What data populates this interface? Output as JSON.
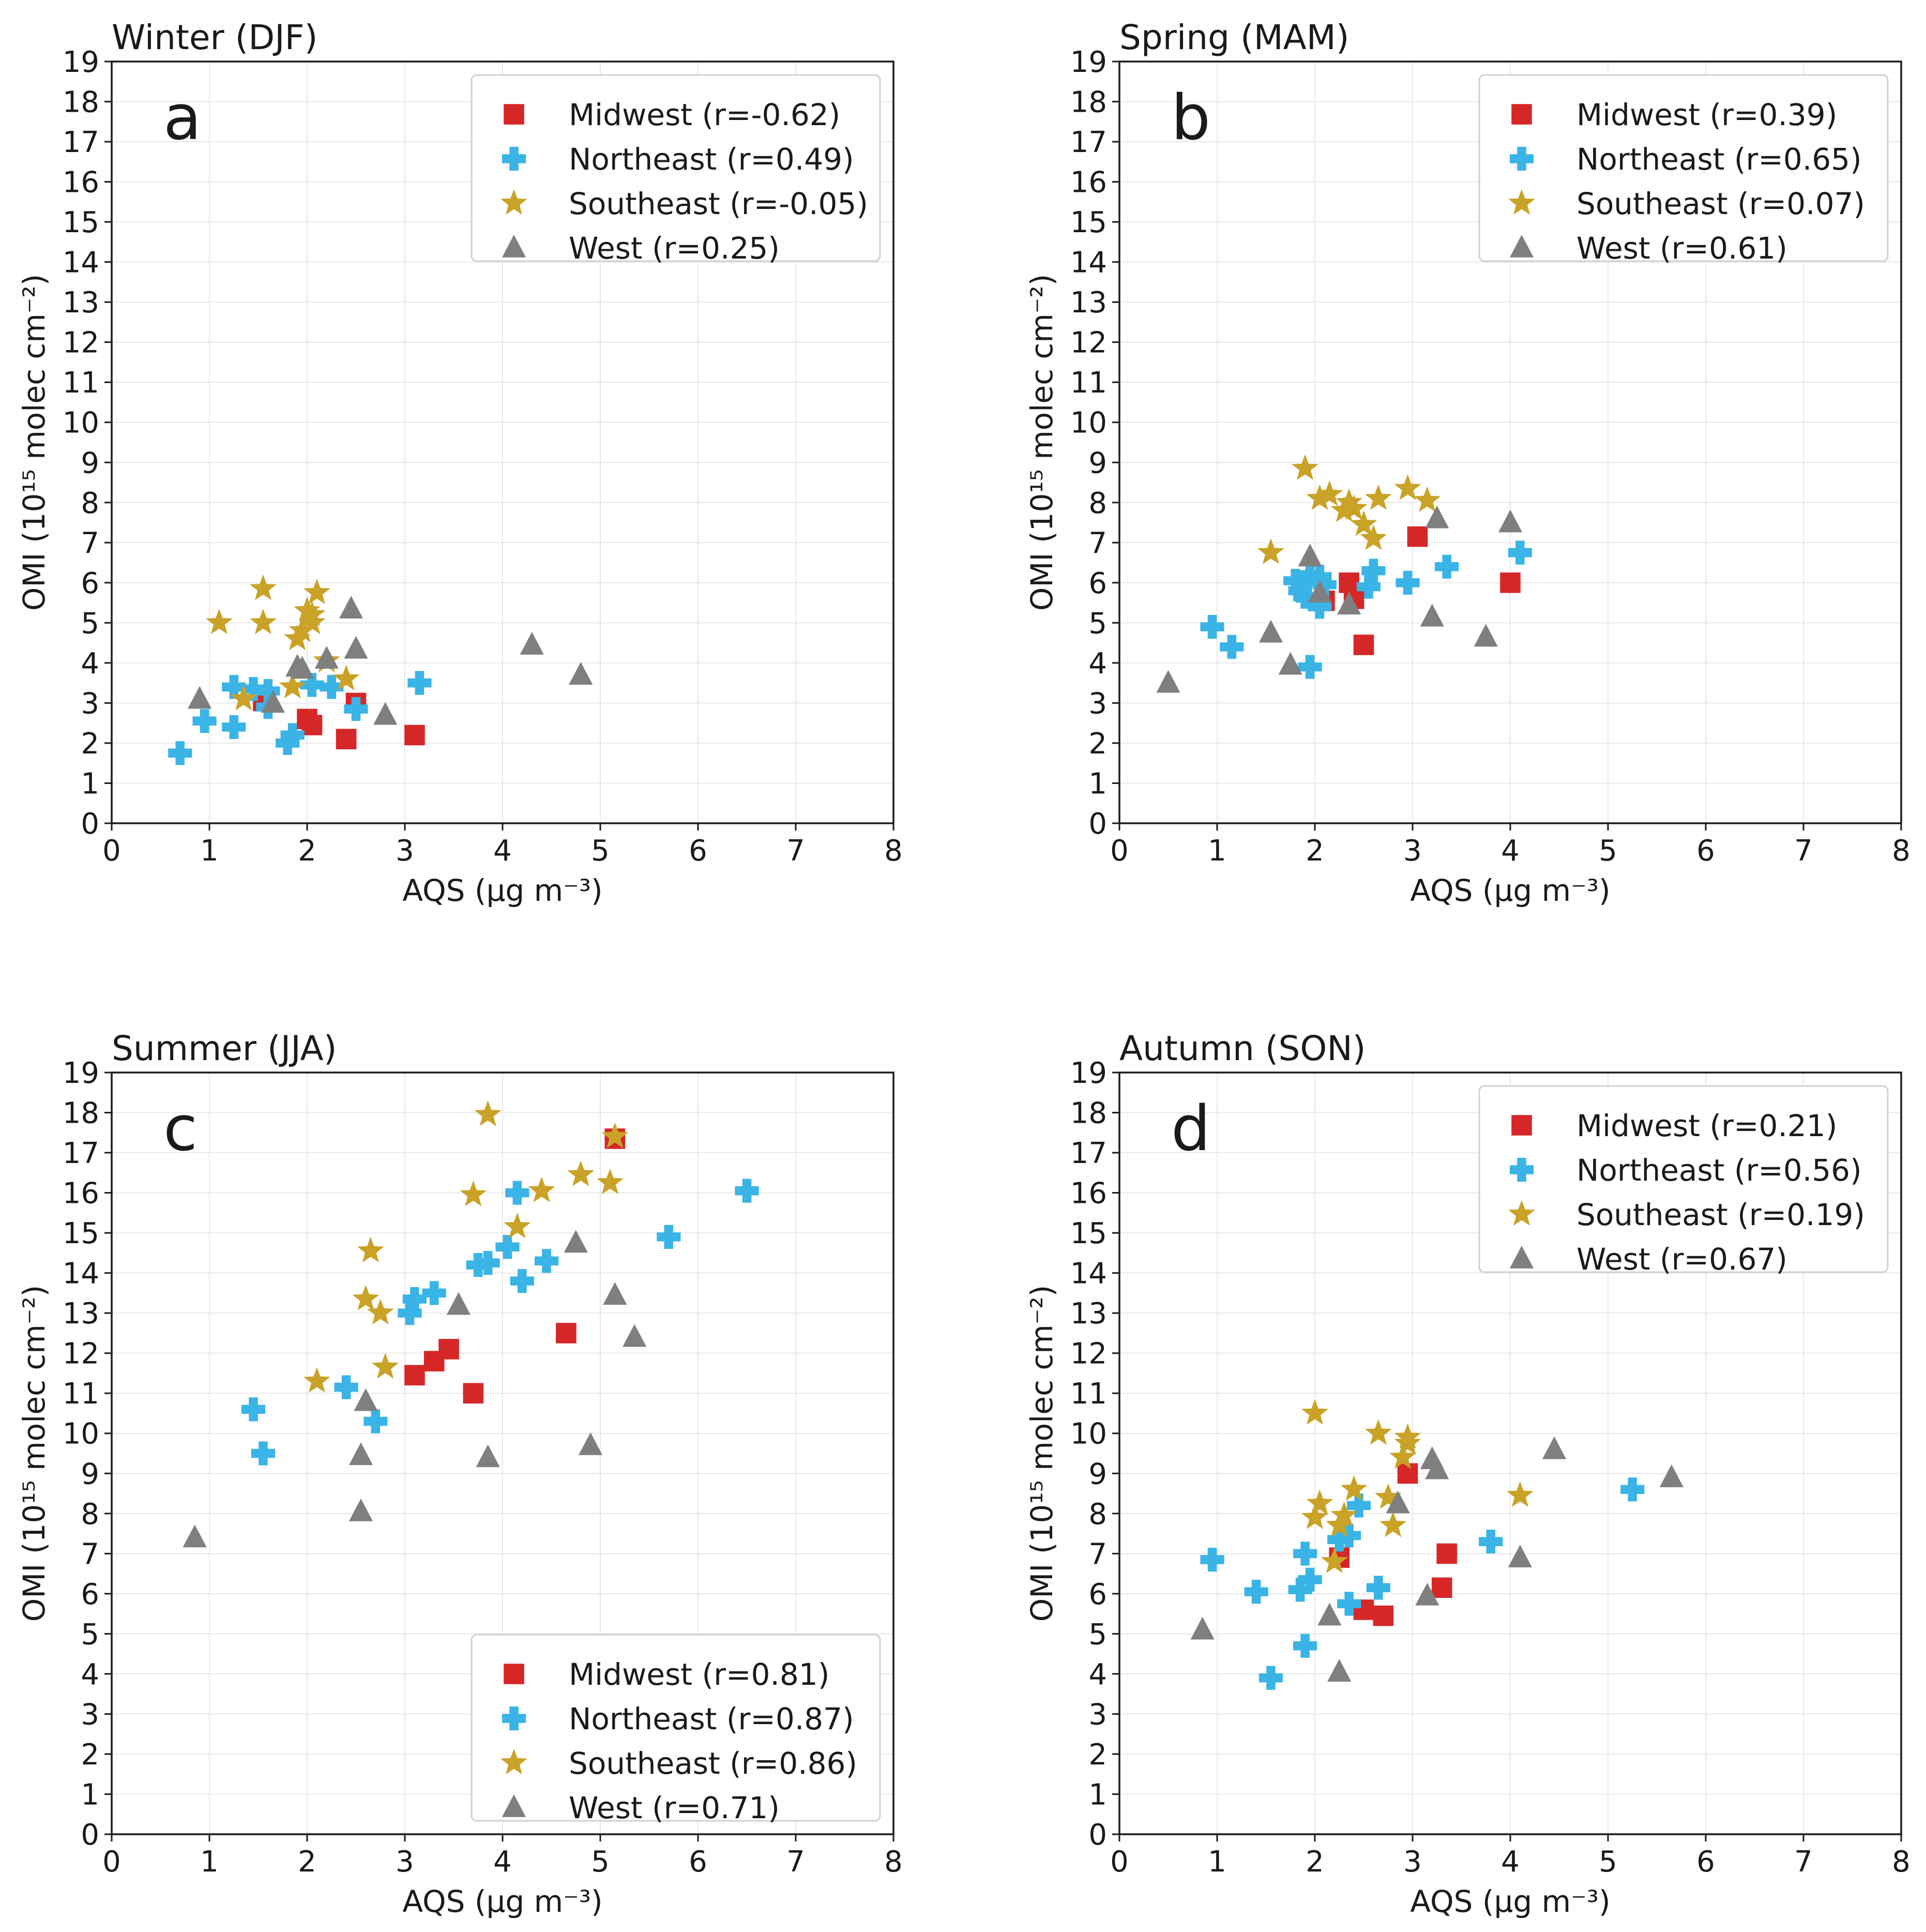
{
  "figure": {
    "panels": [
      {
        "id": "a",
        "title": "Winter (DJF)",
        "letter": "a",
        "xlabel": "AQS (μg m⁻³)",
        "ylabel": "OMI (10¹⁵ molec cm⁻²)",
        "legend_pos": "top-right",
        "legend": [
          {
            "label": "Midwest (r=-0.62)"
          },
          {
            "label": "Northeast (r=0.49)"
          },
          {
            "label": "Southeast (r=-0.05)"
          },
          {
            "label": "West (r=0.25)"
          }
        ]
      },
      {
        "id": "b",
        "title": "Spring (MAM)",
        "letter": "b",
        "xlabel": "AQS (μg m⁻³)",
        "ylabel": "OMI (10¹⁵ molec cm⁻²)",
        "legend_pos": "top-right",
        "legend": [
          {
            "label": "Midwest (r=0.39)"
          },
          {
            "label": "Northeast (r=0.65)"
          },
          {
            "label": "Southeast (r=0.07)"
          },
          {
            "label": "West (r=0.61)"
          }
        ]
      },
      {
        "id": "c",
        "title": "Summer (JJA)",
        "letter": "c",
        "xlabel": "AQS (μg m⁻³)",
        "ylabel": "OMI (10¹⁵ molec cm⁻²)",
        "legend_pos": "bottom-right",
        "legend": [
          {
            "label": "Midwest (r=0.81)"
          },
          {
            "label": "Northeast (r=0.87)"
          },
          {
            "label": "Southeast (r=0.86)"
          },
          {
            "label": "West (r=0.71)"
          }
        ]
      },
      {
        "id": "d",
        "title": "Autumn (SON)",
        "letter": "d",
        "xlabel": "AQS (μg m⁻³)",
        "ylabel": "OMI (10¹⁵ molec cm⁻²)",
        "legend_pos": "top-right",
        "legend": [
          {
            "label": "Midwest (r=0.21)"
          },
          {
            "label": "Northeast (r=0.56)"
          },
          {
            "label": "Southeast (r=0.19)"
          },
          {
            "label": "West (r=0.67)"
          }
        ]
      }
    ]
  },
  "colors": {
    "Midwest": "#d62728",
    "Northeast": "#3ab4e6",
    "Southeast": "#c9a227",
    "West": "#7f7f7f",
    "grid": "#e8e8e8",
    "axis": "#1a1a1a"
  },
  "chart_data": [
    {
      "type": "scatter",
      "title": "Winter (DJF)",
      "xlabel": "AQS (μg m⁻³)",
      "ylabel": "OMI (10¹⁵ molec cm⁻²)",
      "xlim": [
        0,
        8
      ],
      "ylim": [
        0,
        19
      ],
      "xticks": [
        0,
        1,
        2,
        3,
        4,
        5,
        6,
        7,
        8
      ],
      "yticks": [
        0,
        1,
        2,
        3,
        4,
        5,
        6,
        7,
        8,
        9,
        10,
        11,
        12,
        13,
        14,
        15,
        16,
        17,
        18,
        19
      ],
      "grid": true,
      "series": [
        {
          "name": "Midwest",
          "marker": "square",
          "points": [
            [
              1.55,
              3.05
            ],
            [
              2.0,
              2.6
            ],
            [
              2.05,
              2.45
            ],
            [
              2.4,
              2.1
            ],
            [
              2.5,
              3.0
            ],
            [
              3.1,
              2.2
            ]
          ]
        },
        {
          "name": "Northeast",
          "marker": "plus",
          "points": [
            [
              0.7,
              1.75
            ],
            [
              0.95,
              2.55
            ],
            [
              1.25,
              2.4
            ],
            [
              1.25,
              3.4
            ],
            [
              1.45,
              3.35
            ],
            [
              1.6,
              3.3
            ],
            [
              1.6,
              2.9
            ],
            [
              1.8,
              2.0
            ],
            [
              1.85,
              2.2
            ],
            [
              2.05,
              3.45
            ],
            [
              2.25,
              3.4
            ],
            [
              2.5,
              2.85
            ],
            [
              3.15,
              3.5
            ]
          ]
        },
        {
          "name": "Southeast",
          "marker": "star",
          "points": [
            [
              1.1,
              5.0
            ],
            [
              1.35,
              3.1
            ],
            [
              1.55,
              5.85
            ],
            [
              1.55,
              5.0
            ],
            [
              1.85,
              3.4
            ],
            [
              1.9,
              4.6
            ],
            [
              1.95,
              4.8
            ],
            [
              2.0,
              5.3
            ],
            [
              2.05,
              5.0
            ],
            [
              2.05,
              5.2
            ],
            [
              2.1,
              5.75
            ],
            [
              2.2,
              4.05
            ],
            [
              2.4,
              3.6
            ]
          ]
        },
        {
          "name": "West",
          "marker": "triangle",
          "points": [
            [
              0.9,
              3.1
            ],
            [
              1.65,
              3.0
            ],
            [
              1.9,
              3.9
            ],
            [
              1.95,
              3.85
            ],
            [
              2.2,
              4.1
            ],
            [
              2.45,
              5.35
            ],
            [
              2.5,
              4.35
            ],
            [
              2.8,
              2.7
            ],
            [
              4.3,
              4.45
            ],
            [
              4.8,
              3.7
            ]
          ]
        }
      ]
    },
    {
      "type": "scatter",
      "title": "Spring (MAM)",
      "xlabel": "AQS (μg m⁻³)",
      "ylabel": "OMI (10¹⁵ molec cm⁻²)",
      "xlim": [
        0,
        8
      ],
      "ylim": [
        0,
        19
      ],
      "xticks": [
        0,
        1,
        2,
        3,
        4,
        5,
        6,
        7,
        8
      ],
      "yticks": [
        0,
        1,
        2,
        3,
        4,
        5,
        6,
        7,
        8,
        9,
        10,
        11,
        12,
        13,
        14,
        15,
        16,
        17,
        18,
        19
      ],
      "grid": true,
      "series": [
        {
          "name": "Midwest",
          "marker": "square",
          "points": [
            [
              2.1,
              5.55
            ],
            [
              2.35,
              6.0
            ],
            [
              2.4,
              5.6
            ],
            [
              2.5,
              4.45
            ],
            [
              3.05,
              7.15
            ],
            [
              4.0,
              6.0
            ]
          ]
        },
        {
          "name": "Northeast",
          "marker": "plus",
          "points": [
            [
              0.95,
              4.9
            ],
            [
              1.15,
              4.4
            ],
            [
              1.8,
              6.05
            ],
            [
              1.85,
              5.8
            ],
            [
              1.9,
              5.65
            ],
            [
              1.95,
              6.2
            ],
            [
              1.95,
              3.9
            ],
            [
              2.05,
              6.15
            ],
            [
              2.05,
              5.4
            ],
            [
              2.1,
              5.95
            ],
            [
              2.55,
              5.9
            ],
            [
              2.6,
              6.3
            ],
            [
              2.95,
              6.0
            ],
            [
              3.35,
              6.4
            ],
            [
              4.1,
              6.75
            ]
          ]
        },
        {
          "name": "Southeast",
          "marker": "star",
          "points": [
            [
              1.55,
              6.75
            ],
            [
              1.9,
              8.85
            ],
            [
              2.05,
              8.1
            ],
            [
              2.15,
              8.2
            ],
            [
              2.3,
              7.8
            ],
            [
              2.35,
              8.0
            ],
            [
              2.4,
              7.85
            ],
            [
              2.5,
              7.45
            ],
            [
              2.6,
              7.1
            ],
            [
              2.65,
              8.1
            ],
            [
              2.95,
              8.35
            ],
            [
              3.15,
              8.05
            ]
          ]
        },
        {
          "name": "West",
          "marker": "triangle",
          "points": [
            [
              0.5,
              3.5
            ],
            [
              1.55,
              4.75
            ],
            [
              1.75,
              3.95
            ],
            [
              1.95,
              6.65
            ],
            [
              2.05,
              5.75
            ],
            [
              2.35,
              5.45
            ],
            [
              3.2,
              5.15
            ],
            [
              3.25,
              7.6
            ],
            [
              3.75,
              4.65
            ],
            [
              4.0,
              7.5
            ]
          ]
        }
      ]
    },
    {
      "type": "scatter",
      "title": "Summer (JJA)",
      "xlabel": "AQS (μg m⁻³)",
      "ylabel": "OMI (10¹⁵ molec cm⁻²)",
      "xlim": [
        0,
        8
      ],
      "ylim": [
        0,
        19
      ],
      "xticks": [
        0,
        1,
        2,
        3,
        4,
        5,
        6,
        7,
        8
      ],
      "yticks": [
        0,
        1,
        2,
        3,
        4,
        5,
        6,
        7,
        8,
        9,
        10,
        11,
        12,
        13,
        14,
        15,
        16,
        17,
        18,
        19
      ],
      "grid": true,
      "series": [
        {
          "name": "Midwest",
          "marker": "square",
          "points": [
            [
              3.1,
              11.45
            ],
            [
              3.3,
              11.8
            ],
            [
              3.45,
              12.1
            ],
            [
              3.7,
              11.0
            ],
            [
              4.65,
              12.5
            ],
            [
              5.15,
              17.35
            ]
          ]
        },
        {
          "name": "Northeast",
          "marker": "plus",
          "points": [
            [
              1.45,
              10.6
            ],
            [
              1.55,
              9.5
            ],
            [
              2.4,
              11.15
            ],
            [
              2.7,
              10.3
            ],
            [
              3.05,
              13.0
            ],
            [
              3.1,
              13.35
            ],
            [
              3.3,
              13.5
            ],
            [
              3.75,
              14.2
            ],
            [
              3.85,
              14.25
            ],
            [
              4.05,
              14.65
            ],
            [
              4.15,
              16.0
            ],
            [
              4.2,
              13.8
            ],
            [
              4.45,
              14.3
            ],
            [
              5.7,
              14.9
            ],
            [
              6.5,
              16.05
            ]
          ]
        },
        {
          "name": "Southeast",
          "marker": "star",
          "points": [
            [
              2.1,
              11.3
            ],
            [
              2.6,
              13.35
            ],
            [
              2.65,
              14.55
            ],
            [
              2.75,
              13.0
            ],
            [
              2.8,
              11.65
            ],
            [
              3.7,
              15.95
            ],
            [
              3.85,
              17.95
            ],
            [
              4.15,
              15.15
            ],
            [
              4.4,
              16.05
            ],
            [
              4.8,
              16.45
            ],
            [
              5.1,
              16.25
            ],
            [
              5.15,
              17.4
            ]
          ]
        },
        {
          "name": "West",
          "marker": "triangle",
          "points": [
            [
              0.85,
              7.4
            ],
            [
              2.55,
              8.05
            ],
            [
              2.55,
              9.45
            ],
            [
              2.6,
              10.8
            ],
            [
              3.55,
              13.2
            ],
            [
              3.85,
              9.4
            ],
            [
              4.75,
              14.75
            ],
            [
              4.9,
              9.7
            ],
            [
              5.15,
              13.45
            ],
            [
              5.35,
              12.4
            ]
          ]
        }
      ]
    },
    {
      "type": "scatter",
      "title": "Autumn (SON)",
      "xlabel": "AQS (μg m⁻³)",
      "ylabel": "OMI (10¹⁵ molec cm⁻²)",
      "xlim": [
        0,
        8
      ],
      "ylim": [
        0,
        19
      ],
      "xticks": [
        0,
        1,
        2,
        3,
        4,
        5,
        6,
        7,
        8
      ],
      "yticks": [
        0,
        1,
        2,
        3,
        4,
        5,
        6,
        7,
        8,
        9,
        10,
        11,
        12,
        13,
        14,
        15,
        16,
        17,
        18,
        19
      ],
      "grid": true,
      "series": [
        {
          "name": "Midwest",
          "marker": "square",
          "points": [
            [
              2.25,
              6.9
            ],
            [
              2.5,
              5.6
            ],
            [
              2.7,
              5.45
            ],
            [
              2.95,
              9.0
            ],
            [
              3.3,
              6.15
            ],
            [
              3.35,
              7.0
            ]
          ]
        },
        {
          "name": "Northeast",
          "marker": "plus",
          "points": [
            [
              0.95,
              6.85
            ],
            [
              1.4,
              6.05
            ],
            [
              1.55,
              3.9
            ],
            [
              1.85,
              6.1
            ],
            [
              1.9,
              4.7
            ],
            [
              1.9,
              7.0
            ],
            [
              1.95,
              6.35
            ],
            [
              2.25,
              7.35
            ],
            [
              2.35,
              7.45
            ],
            [
              2.35,
              5.75
            ],
            [
              2.45,
              8.2
            ],
            [
              2.65,
              6.15
            ],
            [
              3.8,
              7.3
            ],
            [
              5.25,
              8.6
            ]
          ]
        },
        {
          "name": "Southeast",
          "marker": "star",
          "points": [
            [
              2.0,
              10.5
            ],
            [
              2.0,
              7.9
            ],
            [
              2.05,
              8.25
            ],
            [
              2.2,
              6.8
            ],
            [
              2.25,
              7.7
            ],
            [
              2.3,
              7.95
            ],
            [
              2.4,
              8.6
            ],
            [
              2.65,
              10.0
            ],
            [
              2.75,
              8.4
            ],
            [
              2.8,
              7.7
            ],
            [
              2.9,
              9.4
            ],
            [
              2.95,
              9.75
            ],
            [
              2.95,
              9.9
            ],
            [
              4.1,
              8.45
            ]
          ]
        },
        {
          "name": "West",
          "marker": "triangle",
          "points": [
            [
              0.85,
              5.1
            ],
            [
              2.15,
              5.45
            ],
            [
              2.25,
              4.05
            ],
            [
              2.85,
              8.25
            ],
            [
              3.15,
              5.95
            ],
            [
              3.2,
              9.35
            ],
            [
              3.25,
              9.1
            ],
            [
              4.1,
              6.9
            ],
            [
              4.45,
              9.6
            ],
            [
              5.65,
              8.9
            ]
          ]
        }
      ]
    }
  ]
}
